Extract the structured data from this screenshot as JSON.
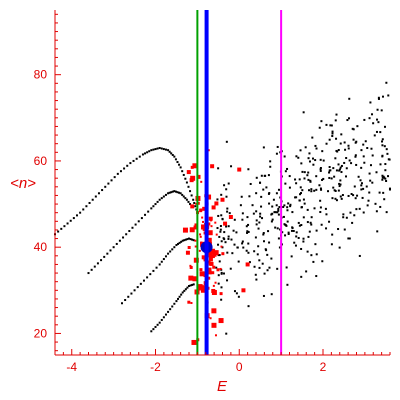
{
  "chart_data": {
    "type": "scatter",
    "xlabel": "E",
    "ylabel": "<n>",
    "xlim": [
      -4.4,
      3.6
    ],
    "ylim": [
      15,
      95
    ],
    "x_ticks": [
      -4,
      -2,
      0,
      2
    ],
    "y_ticks": [
      20,
      40,
      60,
      80
    ],
    "grid": false,
    "vertical_lines": [
      {
        "x": -1.0,
        "color": "#00a000"
      },
      {
        "x": -0.78,
        "color": "#0000ff"
      },
      {
        "x": 1.0,
        "color": "#ff00ff"
      }
    ],
    "colors": {
      "axes": "#e00000",
      "black_points": "#000000",
      "red_points": "#ff0000",
      "big_point": "#0000c0"
    },
    "dotted_curves": [
      {
        "name": "",
        "x": [
          -4.4,
          -4.1,
          -3.8,
          -3.5,
          -3.2,
          -2.9,
          -2.6,
          -2.3,
          -2.1,
          -1.9,
          -1.7,
          -1.55,
          -1.4,
          -1.25,
          -1.1,
          -1.0
        ],
        "y": [
          43,
          45.5,
          48,
          51,
          54,
          57,
          59.5,
          61.5,
          62.5,
          63,
          62.5,
          61,
          58.5,
          55,
          51,
          48
        ]
      },
      {
        "name": "",
        "x": [
          -3.6,
          -3.3,
          -3.0,
          -2.7,
          -2.4,
          -2.1,
          -1.9,
          -1.7,
          -1.55,
          -1.4,
          -1.25,
          -1.1
        ],
        "y": [
          34,
          37,
          40,
          43,
          46,
          49,
          51,
          52.5,
          53,
          52.5,
          51,
          49
        ]
      },
      {
        "name": "",
        "x": [
          -2.8,
          -2.5,
          -2.2,
          -1.9,
          -1.7,
          -1.5,
          -1.35,
          -1.2,
          -1.05
        ],
        "y": [
          27,
          30,
          33,
          36,
          38.5,
          40.5,
          41.5,
          42,
          41.5
        ]
      },
      {
        "name": "",
        "x": [
          -2.1,
          -1.9,
          -1.7,
          -1.5,
          -1.35,
          -1.2,
          -1.05
        ],
        "y": [
          20.5,
          22.5,
          25,
          27.5,
          29.5,
          31,
          31.5
        ]
      }
    ],
    "red_cluster": {
      "x_range": [
        -1.3,
        0.1
      ],
      "y_range": [
        18,
        58
      ],
      "count": 120,
      "seed": 7
    },
    "black_cloud": {
      "x_range": [
        -0.6,
        3.6
      ],
      "y_range": [
        18,
        92
      ],
      "count": 460,
      "seed": 11
    },
    "big_point": {
      "x": -0.78,
      "y": 40
    }
  }
}
